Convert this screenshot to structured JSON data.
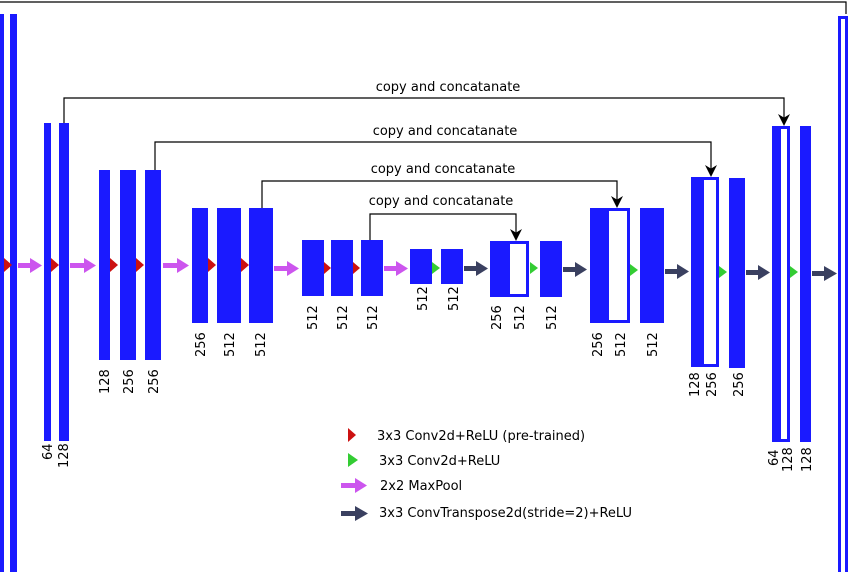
{
  "copy_label": "copy and concatanate",
  "colors": {
    "block": "#1a1aff",
    "conv_pretrained": "#cc1111",
    "conv": "#33cc33",
    "maxpool": "#cc55ee",
    "convtranspose": "#3a4060"
  },
  "encoder": {
    "level1": [
      "64",
      "128"
    ],
    "level2": [
      "128",
      "256",
      "256"
    ],
    "level3": [
      "256",
      "512",
      "512"
    ],
    "level4": [
      "512",
      "512",
      "512"
    ],
    "bottleneck": [
      "512",
      "512"
    ]
  },
  "decoder": {
    "level4": [
      "256",
      "512",
      "512"
    ],
    "level3": [
      "256",
      "512",
      "512"
    ],
    "level2": [
      "128",
      "256",
      "256"
    ],
    "level1": [
      "64",
      "128",
      "128"
    ]
  },
  "legend": [
    {
      "icon": "conv-pretrained-icon",
      "text": "3x3 Conv2d+ReLU (pre-trained)"
    },
    {
      "icon": "conv-icon",
      "text": "3x3 Conv2d+ReLU"
    },
    {
      "icon": "maxpool-icon",
      "text": "2x2 MaxPool"
    },
    {
      "icon": "convtranspose-icon",
      "text": "3x3 ConvTranspose2d(stride=2)+ReLU"
    }
  ]
}
